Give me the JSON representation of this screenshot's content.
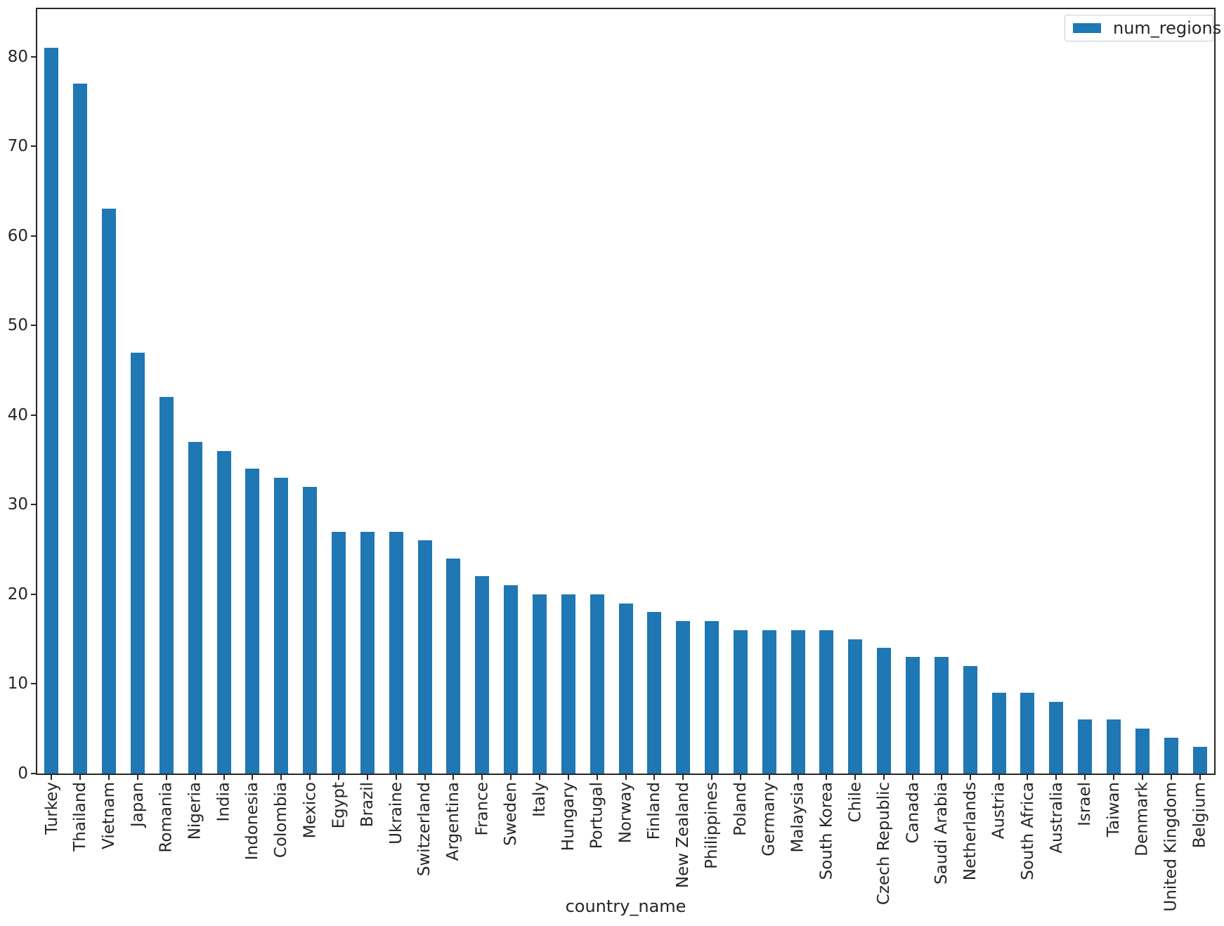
{
  "figure": {
    "xlabel": "country_name",
    "legend": {
      "label": "num_regions"
    },
    "colors": {
      "bar": "#1f77b4",
      "spine": "#262626",
      "text": "#262626",
      "legend_border": "#cccccc"
    }
  },
  "chart_data": {
    "type": "bar",
    "title": "",
    "xlabel": "country_name",
    "ylabel": "",
    "series_name": "num_regions",
    "legend_position": "upper right",
    "grid": false,
    "bar_color": "#1f77b4",
    "ylim": [
      0,
      85.3
    ],
    "yticks": [
      0,
      10,
      20,
      30,
      40,
      50,
      60,
      70,
      80
    ],
    "categories": [
      "Turkey",
      "Thailand",
      "Vietnam",
      "Japan",
      "Romania",
      "Nigeria",
      "India",
      "Indonesia",
      "Colombia",
      "Mexico",
      "Egypt",
      "Brazil",
      "Ukraine",
      "Switzerland",
      "Argentina",
      "France",
      "Sweden",
      "Italy",
      "Hungary",
      "Portugal",
      "Norway",
      "Finland",
      "New Zealand",
      "Philippines",
      "Poland",
      "Germany",
      "Malaysia",
      "South Korea",
      "Chile",
      "Czech Republic",
      "Canada",
      "Saudi Arabia",
      "Netherlands",
      "Austria",
      "South Africa",
      "Australia",
      "Israel",
      "Taiwan",
      "Denmark",
      "United Kingdom",
      "Belgium"
    ],
    "values": [
      81,
      77,
      63,
      47,
      42,
      37,
      36,
      34,
      33,
      32,
      27,
      27,
      27,
      26,
      24,
      22,
      21,
      20,
      20,
      20,
      19,
      18,
      17,
      17,
      16,
      16,
      16,
      16,
      15,
      14,
      13,
      13,
      12,
      9,
      9,
      8,
      6,
      6,
      5,
      4,
      3
    ]
  }
}
